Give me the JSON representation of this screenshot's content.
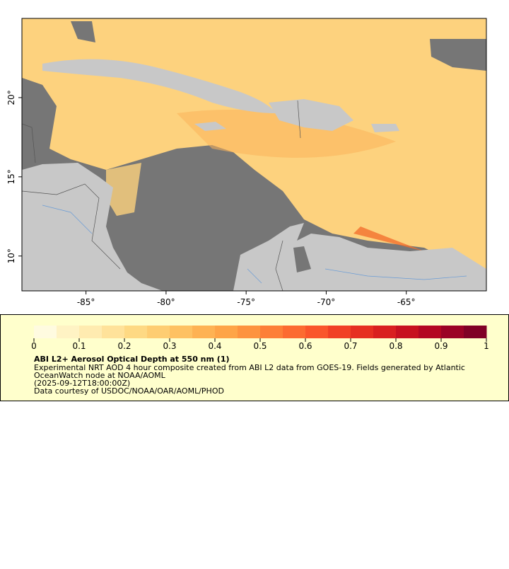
{
  "map": {
    "lon_range": [
      -89,
      -60
    ],
    "lat_range": [
      7.8,
      25
    ],
    "lon_ticks": [
      {
        "value": -85,
        "label": "-85°"
      },
      {
        "value": -80,
        "label": "-80°"
      },
      {
        "value": -75,
        "label": "-75°"
      },
      {
        "value": -70,
        "label": "-70°"
      },
      {
        "value": -65,
        "label": "-65°"
      }
    ],
    "lat_ticks": [
      {
        "value": 20,
        "label": "20°"
      },
      {
        "value": 15,
        "label": "15°"
      },
      {
        "value": 10,
        "label": "10°"
      }
    ]
  },
  "colorbar": {
    "range": [
      0,
      1
    ],
    "ticks": [
      0,
      0.1,
      0.2,
      0.3,
      0.4,
      0.5,
      0.6,
      0.7,
      0.8,
      0.9,
      1
    ],
    "colors": [
      "#fffbe0",
      "#fff3c4",
      "#ffebb0",
      "#ffe29a",
      "#fed983",
      "#fecd72",
      "#fec162",
      "#feb253",
      "#fea447",
      "#fd933f",
      "#fd7f38",
      "#fc6b31",
      "#fa562b",
      "#f14025",
      "#e62f21",
      "#d9201f",
      "#c7111f",
      "#b30723",
      "#9b0226",
      "#800026"
    ]
  },
  "legend": {
    "title": "ABI L2+ Aerosol Optical Depth at 550 nm (1)",
    "lines": [
      "Experimental NRT AOD 4 hour composite created from ABI L2 data from GOES-19. Fields generated by Atlantic",
      "OceanWatch node at NOAA/AOML",
      "(2025-09-12T18:00:00Z)",
      "Data courtesy of USDOC/NOAA/OAR/AOML/PHOD"
    ]
  }
}
